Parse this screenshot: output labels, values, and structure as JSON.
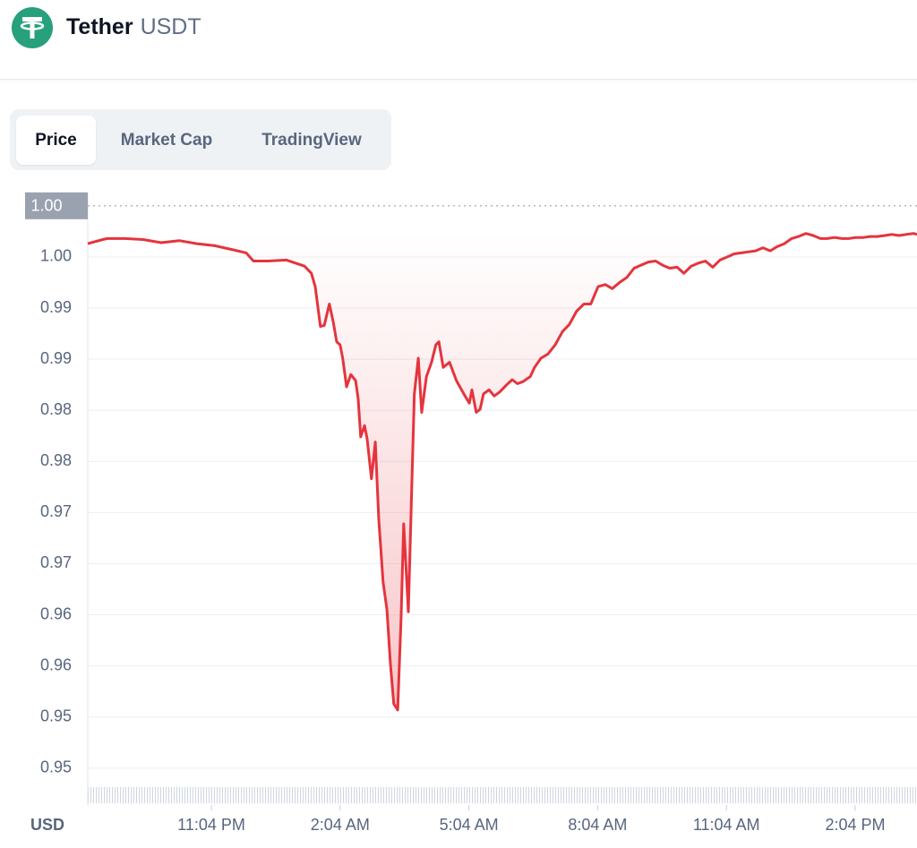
{
  "header": {
    "name": "Tether",
    "symbol": "USDT"
  },
  "tabs": [
    "Price",
    "Market Cap",
    "TradingView"
  ],
  "chart_data": {
    "type": "area",
    "color": "#e5343d",
    "currency": "USD",
    "price_marker": {
      "value": 1.005,
      "label": "1.00"
    },
    "grid": true,
    "xlim": [
      20.19,
      39.51
    ],
    "ylim": [
      0.9485,
      1.0063
    ],
    "xticks": [
      {
        "value": 23.07,
        "label": "11:04 PM"
      },
      {
        "value": 26.07,
        "label": "2:04 AM"
      },
      {
        "value": 29.07,
        "label": "5:04 AM"
      },
      {
        "value": 32.07,
        "label": "8:04 AM"
      },
      {
        "value": 35.07,
        "label": "11:04 AM"
      },
      {
        "value": 38.07,
        "label": "2:04 PM"
      }
    ],
    "yticks": [
      {
        "value": 1.0,
        "label": "1.00"
      },
      {
        "value": 0.995,
        "label": "0.99"
      },
      {
        "value": 0.99,
        "label": "0.99"
      },
      {
        "value": 0.985,
        "label": "0.98"
      },
      {
        "value": 0.98,
        "label": "0.98"
      },
      {
        "value": 0.975,
        "label": "0.97"
      },
      {
        "value": 0.97,
        "label": "0.97"
      },
      {
        "value": 0.965,
        "label": "0.96"
      },
      {
        "value": 0.96,
        "label": "0.96"
      },
      {
        "value": 0.955,
        "label": "0.95"
      },
      {
        "value": 0.95,
        "label": "0.95"
      }
    ],
    "x": [
      20.19,
      20.54,
      20.65,
      21.06,
      21.48,
      21.9,
      22.32,
      22.73,
      23.15,
      23.57,
      23.88,
      24.05,
      24.4,
      24.82,
      25.24,
      25.4,
      25.49,
      25.61,
      25.7,
      25.82,
      25.91,
      25.99,
      26.07,
      26.13,
      26.22,
      26.32,
      26.43,
      26.49,
      26.55,
      26.64,
      26.7,
      26.8,
      26.89,
      26.97,
      27.07,
      27.16,
      27.24,
      27.32,
      27.41,
      27.49,
      27.55,
      27.66,
      27.74,
      27.8,
      27.89,
      27.97,
      28.08,
      28.2,
      28.3,
      28.37,
      28.47,
      28.62,
      28.78,
      28.95,
      29.08,
      29.14,
      29.24,
      29.33,
      29.41,
      29.54,
      29.66,
      29.79,
      29.95,
      30.08,
      30.2,
      30.33,
      30.5,
      30.6,
      30.75,
      30.91,
      31.08,
      31.25,
      31.41,
      31.58,
      31.75,
      31.91,
      32.08,
      32.25,
      32.41,
      32.58,
      32.75,
      32.92,
      33.08,
      33.25,
      33.42,
      33.58,
      33.75,
      33.92,
      34.08,
      34.25,
      34.42,
      34.58,
      34.75,
      34.92,
      35.09,
      35.25,
      35.42,
      35.59,
      35.75,
      35.92,
      36.09,
      36.25,
      36.42,
      36.59,
      36.75,
      36.92,
      37.09,
      37.26,
      37.42,
      37.59,
      37.76,
      37.92,
      38.09,
      38.26,
      38.42,
      38.59,
      38.76,
      38.92,
      39.09,
      39.26,
      39.43,
      39.51
    ],
    "values": [
      1.0013,
      1.0017,
      1.0018,
      1.0018,
      1.0017,
      1.0014,
      1.0016,
      1.0013,
      1.0011,
      1.0007,
      1.0004,
      0.9996,
      0.9996,
      0.9997,
      0.9991,
      0.9984,
      0.9971,
      0.9932,
      0.9933,
      0.9954,
      0.9936,
      0.9917,
      0.9914,
      0.9901,
      0.9873,
      0.9885,
      0.9879,
      0.9861,
      0.9824,
      0.9835,
      0.9822,
      0.9783,
      0.9819,
      0.9743,
      0.9682,
      0.9655,
      0.9603,
      0.9563,
      0.9557,
      0.9647,
      0.9739,
      0.9653,
      0.9778,
      0.9866,
      0.9901,
      0.9848,
      0.9883,
      0.9897,
      0.9914,
      0.9917,
      0.9892,
      0.9897,
      0.9879,
      0.9866,
      0.9857,
      0.987,
      0.9848,
      0.9851,
      0.9866,
      0.987,
      0.9864,
      0.9868,
      0.9875,
      0.988,
      0.9876,
      0.9878,
      0.9883,
      0.9892,
      0.9901,
      0.9905,
      0.9914,
      0.9927,
      0.9934,
      0.9947,
      0.9954,
      0.9954,
      0.9971,
      0.9973,
      0.9969,
      0.9975,
      0.998,
      0.9989,
      0.9992,
      0.9995,
      0.9996,
      0.9992,
      0.9989,
      0.999,
      0.9984,
      0.9991,
      0.9994,
      0.9996,
      0.999,
      0.9997,
      1.0,
      1.0003,
      1.0004,
      1.0005,
      1.0006,
      1.0009,
      1.0006,
      1.001,
      1.0013,
      1.0018,
      1.002,
      1.0023,
      1.0021,
      1.0018,
      1.0018,
      1.0019,
      1.0018,
      1.0018,
      1.0019,
      1.0019,
      1.002,
      1.002,
      1.0021,
      1.0022,
      1.0021,
      1.0022,
      1.0023,
      1.0022
    ]
  }
}
